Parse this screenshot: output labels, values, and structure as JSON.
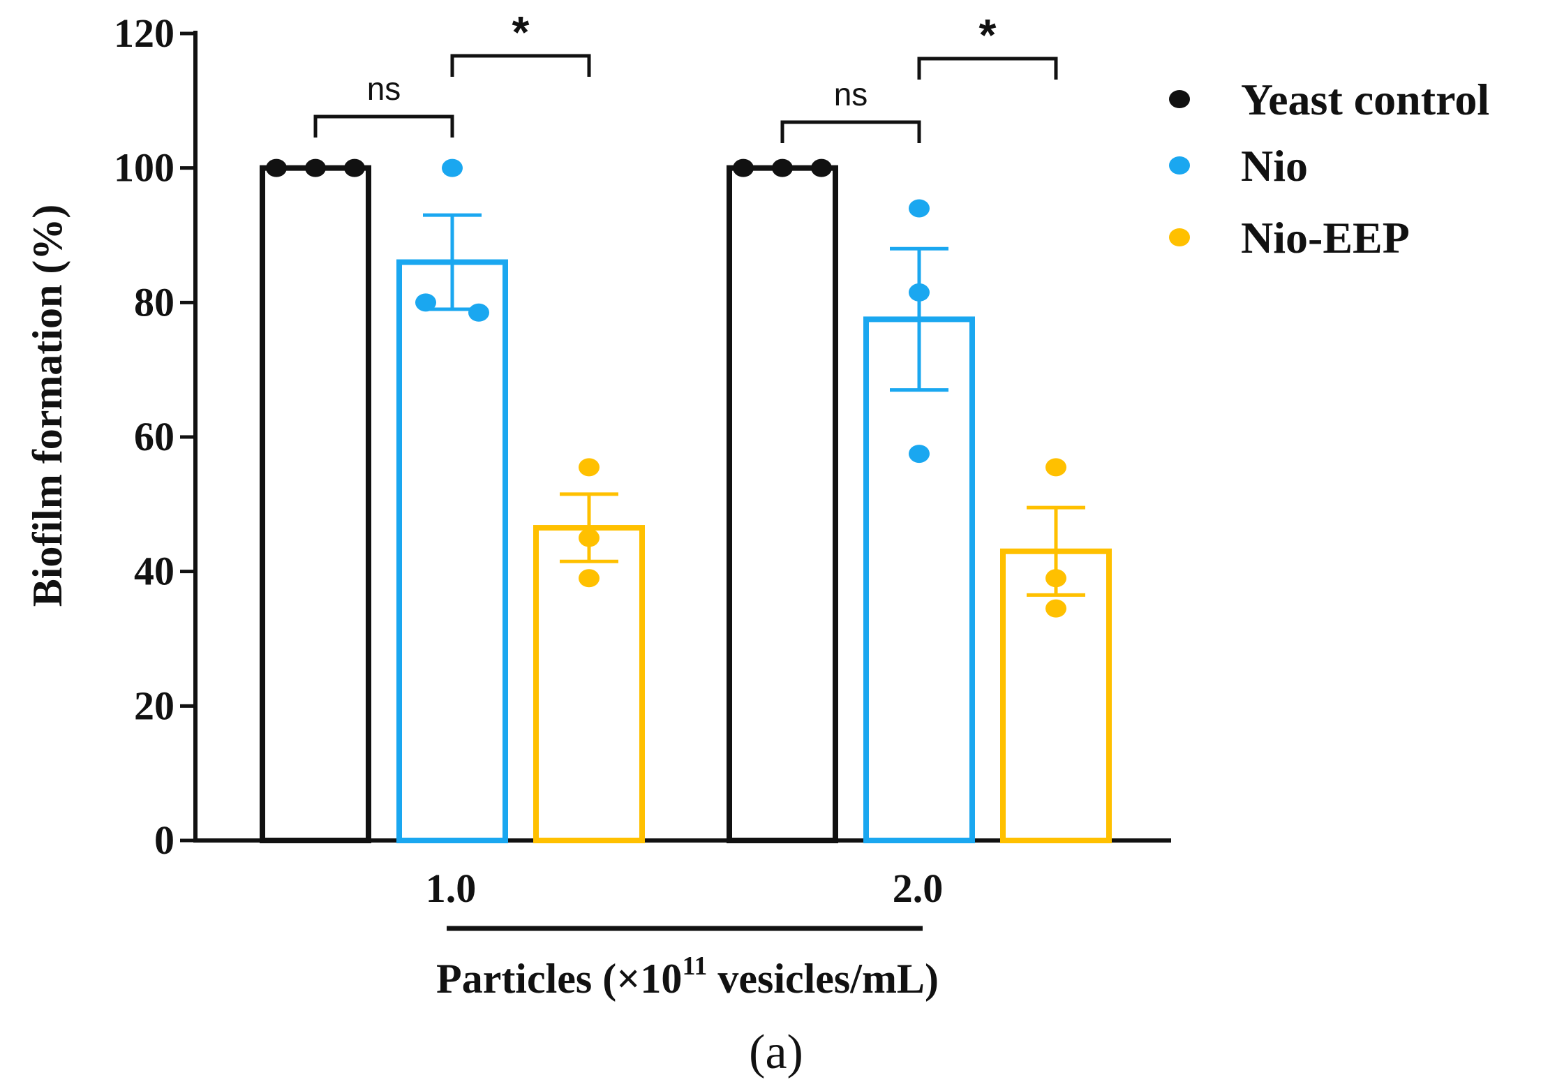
{
  "chart_data": {
    "type": "bar",
    "title": "",
    "panel_label": "(a)",
    "xlabel": {
      "prefix": "Particles (×10",
      "superscript": "11",
      "suffix": " vesicles/mL)"
    },
    "ylabel": "Biofilm formation (%)",
    "ylim": [
      0,
      120
    ],
    "yticks": [
      "0",
      "20",
      "40",
      "60",
      "80",
      "100",
      "120"
    ],
    "categories": [
      "1.0",
      "2.0"
    ],
    "legend_position": "right",
    "series": [
      {
        "name": "Yeast control",
        "color": "#111111",
        "values": [
          100,
          100
        ],
        "error": [
          0,
          0
        ],
        "points": [
          [
            100,
            100,
            100
          ],
          [
            100,
            100,
            100
          ]
        ]
      },
      {
        "name": "Nio",
        "color": "#1aa7f0",
        "values": [
          86,
          77.5
        ],
        "error": [
          7,
          10.5
        ],
        "points": [
          [
            100,
            80,
            78.5
          ],
          [
            94,
            81.5,
            57.5
          ]
        ]
      },
      {
        "name": "Nio-EEP",
        "color": "#ffc000",
        "values": [
          46.5,
          43
        ],
        "error": [
          5,
          6.5
        ],
        "points": [
          [
            55.5,
            45,
            39
          ],
          [
            55.5,
            39,
            34.5
          ]
        ]
      }
    ],
    "significance": [
      {
        "category": "1.0",
        "pair": [
          "Yeast control",
          "Nio"
        ],
        "label": "ns"
      },
      {
        "category": "1.0",
        "pair": [
          "Nio",
          "Nio-EEP"
        ],
        "label": "*"
      },
      {
        "category": "2.0",
        "pair": [
          "Yeast control",
          "Nio"
        ],
        "label": "ns"
      },
      {
        "category": "2.0",
        "pair": [
          "Nio",
          "Nio-EEP"
        ],
        "label": "*"
      }
    ]
  }
}
